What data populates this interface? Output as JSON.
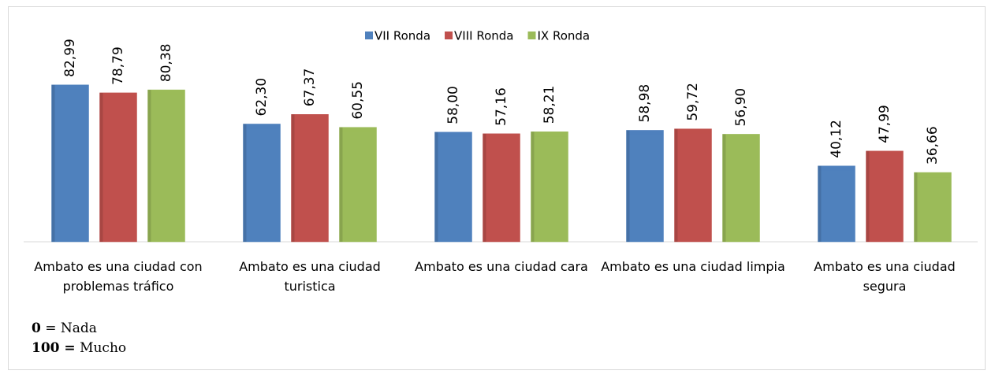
{
  "chart_data": {
    "type": "bar",
    "categories": [
      "Ambato es una ciudad con problemas tráfico",
      "Ambato es una ciudad turistica",
      "Ambato es una ciudad cara",
      "Ambato es una ciudad limpia",
      "Ambato es una ciudad segura"
    ],
    "series": [
      {
        "name": "VII Ronda",
        "color": "#4f81bd",
        "values": [
          82.99,
          62.3,
          58.0,
          58.98,
          40.12
        ],
        "value_labels": [
          "82,99",
          "62,30",
          "58,00",
          "58,98",
          "40,12"
        ]
      },
      {
        "name": "VIII Ronda",
        "color": "#c0504d",
        "values": [
          78.79,
          67.37,
          57.16,
          59.72,
          47.99
        ],
        "value_labels": [
          "78,79",
          "67,37",
          "57,16",
          "59,72",
          "47,99"
        ]
      },
      {
        "name": "IX Ronda",
        "color": "#9bbb59",
        "values": [
          80.38,
          60.55,
          58.21,
          56.9,
          36.66
        ],
        "value_labels": [
          "80,38",
          "60,55",
          "58,21",
          "56,90",
          "36,66"
        ]
      }
    ],
    "ylim": [
      0,
      100
    ],
    "legend": "top",
    "notes": [
      {
        "key": "0",
        "text": "= Nada"
      },
      {
        "key": "100 =",
        "text": "Mucho"
      }
    ]
  }
}
